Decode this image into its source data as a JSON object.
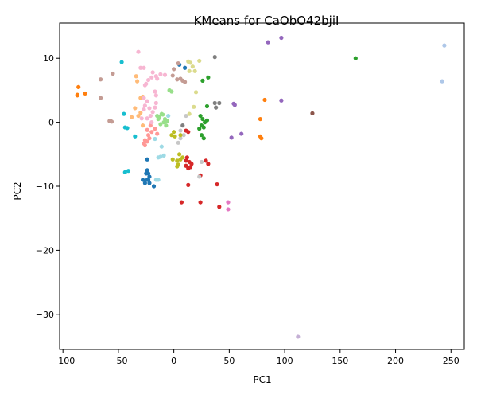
{
  "chart_data": {
    "type": "scatter",
    "title": "KMeans for CaObO42bjiI",
    "xlabel": "PC1",
    "ylabel": "PC2",
    "xlim": [
      -103,
      262
    ],
    "ylim": [
      -35.5,
      15.5
    ],
    "x_ticks": [
      -100,
      -50,
      0,
      50,
      100,
      150,
      200,
      250
    ],
    "y_ticks": [
      -30,
      -20,
      -10,
      0,
      10
    ],
    "grid": false,
    "legend": "none",
    "clusters": [
      {
        "color": "#1f77b4",
        "points": [
          [
            -24,
            -7.5
          ],
          [
            -23,
            -8
          ],
          [
            -22,
            -8.5
          ],
          [
            -25,
            -8
          ],
          [
            -23,
            -9
          ],
          [
            -28,
            -9
          ],
          [
            -26,
            -9.5
          ],
          [
            -22,
            -9.5
          ],
          [
            -18,
            -10
          ],
          [
            -24,
            -5.8
          ],
          [
            5,
            9
          ],
          [
            10,
            8.5
          ],
          [
            -24,
            -9
          ]
        ]
      },
      {
        "color": "#aec7e8",
        "points": [
          [
            244,
            12
          ],
          [
            242,
            6.4
          ]
        ]
      },
      {
        "color": "#ff7f0e",
        "points": [
          [
            -86,
            5.5
          ],
          [
            -87,
            4.3
          ],
          [
            -80,
            4.5
          ],
          [
            -87,
            4.2
          ],
          [
            82,
            3.5
          ],
          [
            78,
            0.5
          ],
          [
            78,
            -2.2
          ],
          [
            79,
            -2.5
          ]
        ]
      },
      {
        "color": "#ffbb78",
        "points": [
          [
            -34,
            7.2
          ],
          [
            -33,
            6.4
          ],
          [
            -30,
            3.8
          ],
          [
            -28,
            4
          ],
          [
            -35,
            2.2
          ],
          [
            -30,
            1.5
          ],
          [
            -32,
            1
          ],
          [
            -38,
            0.8
          ],
          [
            -28,
            -0.5
          ]
        ]
      },
      {
        "color": "#2ca02c",
        "points": [
          [
            164,
            10
          ],
          [
            31,
            7
          ],
          [
            26,
            6.5
          ],
          [
            30,
            2.5
          ],
          [
            24,
            1
          ],
          [
            26,
            0.5
          ],
          [
            28,
            0
          ],
          [
            25,
            -0.5
          ],
          [
            27,
            -0.8
          ],
          [
            23,
            -1
          ],
          [
            25,
            -2
          ],
          [
            27,
            -2.5
          ],
          [
            30,
            0.3
          ]
        ]
      },
      {
        "color": "#98df8a",
        "points": [
          [
            -13,
            0.8
          ],
          [
            -10,
            1.2
          ],
          [
            -8,
            0.5
          ],
          [
            -12,
            -0.3
          ],
          [
            -6,
            0.2
          ],
          [
            -15,
            1
          ],
          [
            -7,
            -0.5
          ],
          [
            -9,
            0
          ],
          [
            -14,
            0.5
          ],
          [
            -4,
            5
          ],
          [
            -2,
            4.8
          ],
          [
            -11,
            1.3
          ]
        ]
      },
      {
        "color": "#d62728",
        "points": [
          [
            12,
            -5.5
          ],
          [
            14,
            -6.2
          ],
          [
            11,
            -6.8
          ],
          [
            13,
            -7.2
          ],
          [
            16,
            -6.5
          ],
          [
            11,
            -6
          ],
          [
            15,
            -7
          ],
          [
            13,
            -9.8
          ],
          [
            24,
            -8.3
          ],
          [
            29,
            -6
          ],
          [
            31,
            -6.5
          ],
          [
            39,
            -9.7
          ],
          [
            41,
            -13.2
          ],
          [
            7,
            -12.5
          ],
          [
            24,
            -12.5
          ],
          [
            11,
            -1.3
          ],
          [
            13,
            -1.5
          ]
        ]
      },
      {
        "color": "#ff9896",
        "points": [
          [
            -26,
            -2.8
          ],
          [
            -27,
            -3.3
          ],
          [
            -24,
            -3
          ],
          [
            -22,
            -2.5
          ],
          [
            -20,
            -1.5
          ],
          [
            -17,
            -1
          ],
          [
            -23,
            -2
          ],
          [
            -26,
            -3.6
          ],
          [
            -15,
            -1.8
          ],
          [
            -21,
            -0.5
          ],
          [
            -24,
            -1.2
          ]
        ]
      },
      {
        "color": "#9467bd",
        "points": [
          [
            85,
            12.5
          ],
          [
            97,
            13.2
          ],
          [
            97,
            3.4
          ],
          [
            54,
            2.9
          ],
          [
            55,
            2.7
          ],
          [
            52,
            -2.4
          ],
          [
            61,
            -1.8
          ]
        ]
      },
      {
        "color": "#c5b0d5",
        "points": [
          [
            112,
            -33.5
          ]
        ]
      },
      {
        "color": "#8c564b",
        "points": [
          [
            125,
            1.4
          ]
        ]
      },
      {
        "color": "#c49c94",
        "points": [
          [
            -66,
            6.7
          ],
          [
            -66,
            3.8
          ],
          [
            -55,
            7.6
          ],
          [
            -58,
            0.2
          ],
          [
            -56,
            0.1
          ],
          [
            -57,
            0.2
          ],
          [
            4,
            9.2
          ],
          [
            3,
            6.7
          ],
          [
            6,
            6.8
          ],
          [
            10,
            6.3
          ],
          [
            0,
            8.3
          ],
          [
            -1,
            7.3
          ],
          [
            8,
            6.5
          ]
        ]
      },
      {
        "color": "#e377c2",
        "points": [
          [
            49,
            -12.5
          ],
          [
            49,
            -13.6
          ]
        ]
      },
      {
        "color": "#f7b6d2",
        "points": [
          [
            -32,
            11
          ],
          [
            -27,
            8.5
          ],
          [
            -30,
            8.5
          ],
          [
            -20,
            7
          ],
          [
            -16,
            7.2
          ],
          [
            -12,
            7.5
          ],
          [
            -8,
            7.4
          ],
          [
            -19,
            7.8
          ],
          [
            -15,
            6.8
          ],
          [
            -25,
            6
          ],
          [
            -17,
            4.8
          ],
          [
            -16,
            4.2
          ],
          [
            -16,
            3
          ],
          [
            -27,
            3.8
          ],
          [
            -24,
            3.3
          ],
          [
            -26,
            2.6
          ],
          [
            -22,
            2.2
          ],
          [
            -19,
            1.6
          ],
          [
            -21,
            1
          ],
          [
            -29,
            0.6
          ],
          [
            -24,
            0.6
          ],
          [
            -27,
            2
          ],
          [
            -17,
            2.3
          ],
          [
            -20,
            0
          ],
          [
            -26,
            5.8
          ],
          [
            -23,
            6.6
          ]
        ]
      },
      {
        "color": "#7f7f7f",
        "points": [
          [
            37,
            10.2
          ],
          [
            37,
            3
          ],
          [
            41,
            3
          ],
          [
            38,
            2.3
          ],
          [
            8,
            -0.5
          ]
        ]
      },
      {
        "color": "#c7c7c7",
        "points": [
          [
            11,
            1
          ],
          [
            6,
            -1.3
          ],
          [
            9,
            -2
          ],
          [
            4,
            -3.2
          ],
          [
            23,
            -8.5
          ],
          [
            25,
            -6.2
          ],
          [
            6,
            -2.5
          ]
        ]
      },
      {
        "color": "#bcbd22",
        "points": [
          [
            0,
            -1.5
          ],
          [
            -2,
            -2
          ],
          [
            1,
            -2.2
          ],
          [
            -1,
            -5.8
          ],
          [
            3,
            -6
          ],
          [
            5,
            -5
          ],
          [
            4,
            -6.6
          ],
          [
            3,
            -6.9
          ],
          [
            6,
            -5.8
          ],
          [
            8,
            -5.5
          ],
          [
            6,
            -2
          ]
        ]
      },
      {
        "color": "#dbdb8d",
        "points": [
          [
            13,
            9.5
          ],
          [
            15,
            9.3
          ],
          [
            17,
            8.7
          ],
          [
            19,
            8
          ],
          [
            23,
            9.6
          ],
          [
            14,
            8
          ],
          [
            20,
            4.7
          ],
          [
            18,
            2.4
          ],
          [
            14,
            1.3
          ]
        ]
      },
      {
        "color": "#17becf",
        "points": [
          [
            -47,
            9.4
          ],
          [
            -45,
            1.3
          ],
          [
            -44,
            -0.8
          ],
          [
            -42,
            -0.9
          ],
          [
            -35,
            -2.2
          ],
          [
            -44,
            -7.8
          ],
          [
            -41,
            -7.6
          ]
        ]
      },
      {
        "color": "#9edae5",
        "points": [
          [
            -14,
            -5.5
          ],
          [
            -12,
            -5.4
          ],
          [
            -11,
            -3.8
          ],
          [
            -9,
            -5.2
          ],
          [
            -14,
            -9
          ],
          [
            -16,
            -9
          ],
          [
            -17,
            -2.6
          ],
          [
            -5,
            1
          ]
        ]
      }
    ]
  }
}
